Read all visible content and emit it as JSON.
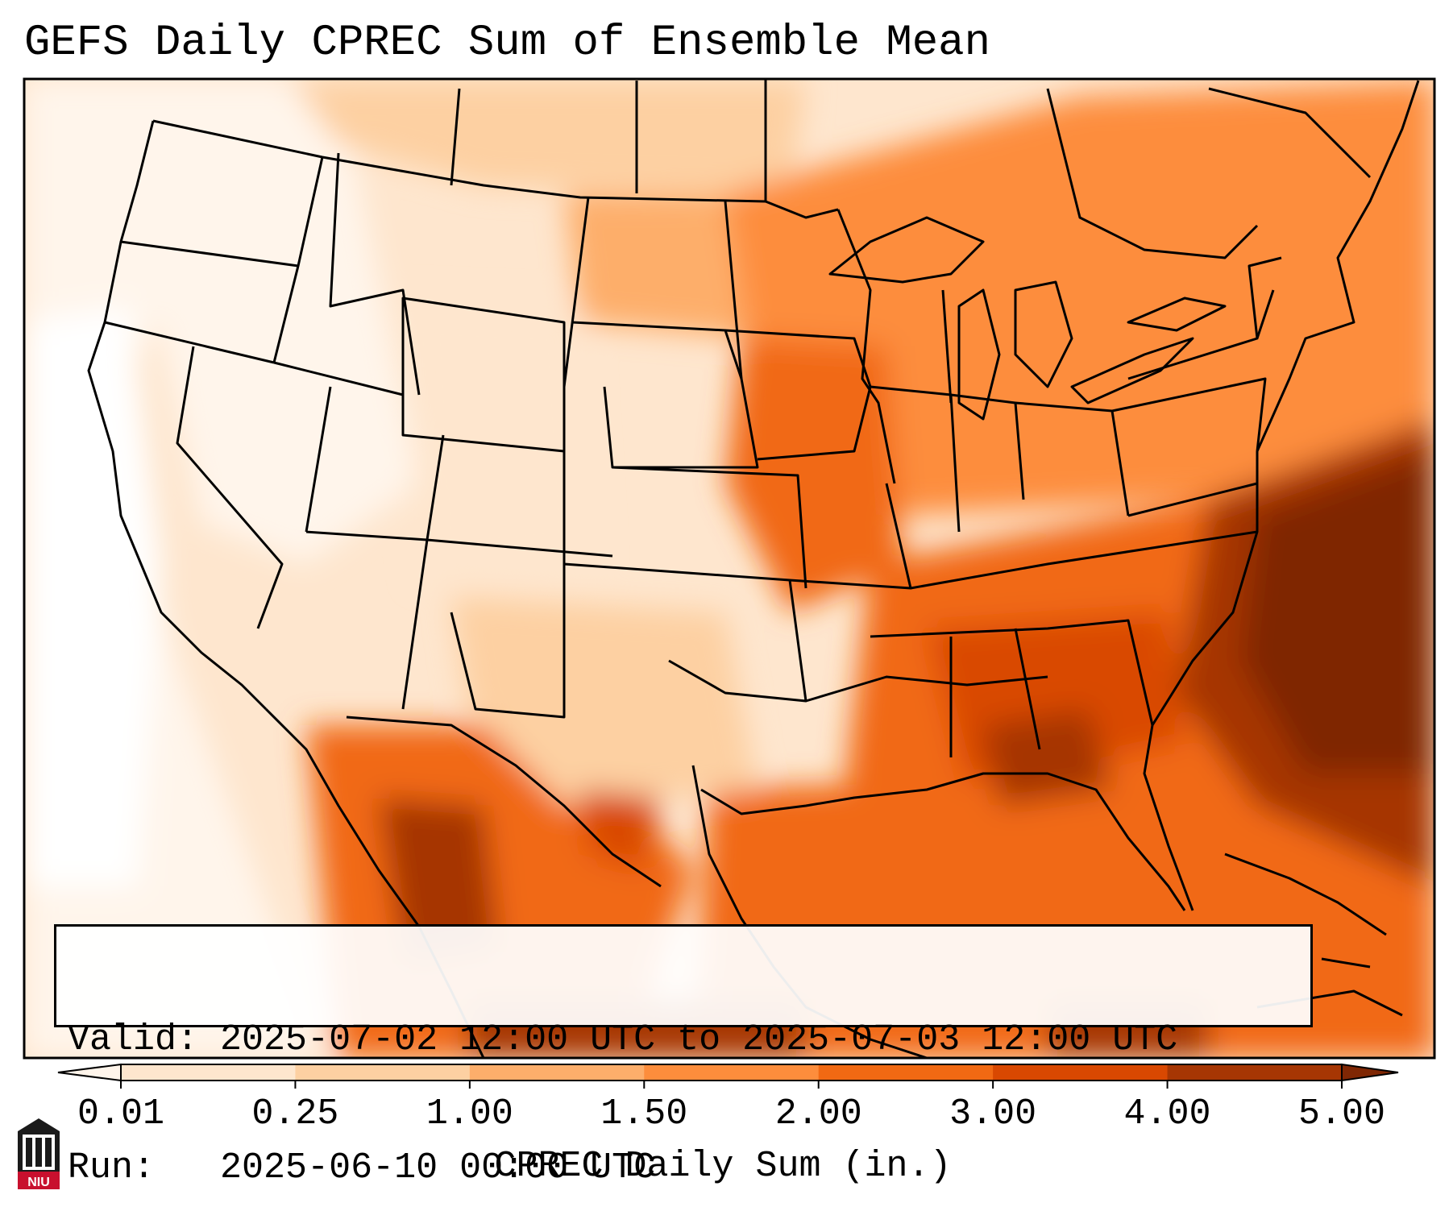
{
  "title": "GEFS Daily CPREC Sum of Ensemble Mean",
  "valid_label": "Valid:",
  "valid_text": "2025-07-02 12:00 UTC to 2025-07-03 12:00 UTC",
  "run_label": "Run:",
  "run_text": "2025-06-10 00:00 UTC",
  "colorbar": {
    "label": "CPREC Daily Sum (in.)",
    "ticks": [
      "0.01",
      "0.25",
      "1.00",
      "1.50",
      "2.00",
      "3.00",
      "4.00",
      "5.00"
    ],
    "colors": [
      "#fff5eb",
      "#fee6ce",
      "#fdd0a2",
      "#fdae6b",
      "#fd8d3c",
      "#f16913",
      "#d94801",
      "#a63603",
      "#7f2704"
    ],
    "extend": "both"
  },
  "logo": {
    "text": "NIU",
    "icon": "niu-logo-icon"
  }
}
